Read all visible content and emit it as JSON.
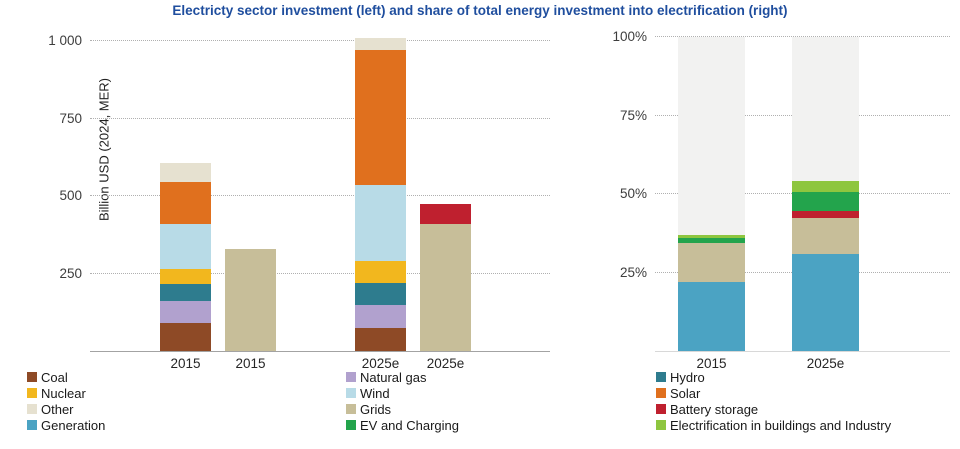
{
  "title": "Electricty sector investment (left) and share of total energy investment into electrification (right)",
  "title_color": "#1f4e9e",
  "chart_data": [
    {
      "type": "bar",
      "stacked": true,
      "panel": "left",
      "title": "Electricity sector investment",
      "ylabel": "Billion USD (2024, MER)",
      "ylim": [
        0,
        1020
      ],
      "grid": "dotted-horizontal",
      "yticks": [
        250,
        500,
        750,
        1000
      ],
      "ytick_labels": [
        "250",
        "500",
        "750",
        "1 000"
      ],
      "categories": [
        "2015",
        "2015",
        "2025e",
        "2025e"
      ],
      "series": [
        {
          "name": "Coal",
          "color": "#8e4a26",
          "values": [
            90,
            0,
            75,
            0
          ]
        },
        {
          "name": "Natural gas",
          "color": "#b1a1ce",
          "values": [
            70,
            0,
            75,
            0
          ]
        },
        {
          "name": "Hydro",
          "color": "#2e7c8e",
          "values": [
            55,
            0,
            70,
            0
          ]
        },
        {
          "name": "Nuclear",
          "color": "#f2b71e",
          "values": [
            50,
            0,
            70,
            0
          ]
        },
        {
          "name": "Wind",
          "color": "#b8dbe7",
          "values": [
            145,
            0,
            245,
            0
          ]
        },
        {
          "name": "Solar",
          "color": "#e0701e",
          "values": [
            135,
            0,
            435,
            0
          ]
        },
        {
          "name": "Other",
          "color": "#e6e1d0",
          "values": [
            60,
            0,
            40,
            0
          ]
        },
        {
          "name": "Grids",
          "color": "#c7be99",
          "values": [
            0,
            330,
            0,
            410
          ]
        },
        {
          "name": "Battery storage",
          "color": "#bf202f",
          "values": [
            0,
            0,
            0,
            65
          ]
        }
      ]
    },
    {
      "type": "bar",
      "stacked": true,
      "panel": "right",
      "title": "Share of total energy investment into electrification",
      "ylabel": "",
      "ylim": [
        0,
        100
      ],
      "grid": "dotted-horizontal",
      "yticks": [
        25,
        50,
        75,
        100
      ],
      "ytick_labels": [
        "25%",
        "50%",
        "75%",
        "100%"
      ],
      "categories": [
        "2015",
        "2025e"
      ],
      "series": [
        {
          "name": "Generation",
          "color": "#4ba3c3",
          "values": [
            22,
            31
          ]
        },
        {
          "name": "Grids",
          "color": "#c7be99",
          "values": [
            12.5,
            11.5
          ]
        },
        {
          "name": "Battery storage",
          "color": "#bf202f",
          "values": [
            0,
            2
          ]
        },
        {
          "name": "EV and Charging",
          "color": "#23a44c",
          "values": [
            1.5,
            6
          ]
        },
        {
          "name": "Electrification in buildings and Industry",
          "color": "#8ec63f",
          "values": [
            1,
            3.5
          ]
        },
        {
          "name": "Remainder",
          "color": "#f2f2f1",
          "values": [
            63,
            46
          ]
        }
      ]
    }
  ],
  "left_chart": {
    "y_axis_title": "Billion USD (2024, MER)"
  },
  "legend": {
    "column1": [
      {
        "label": "Coal",
        "color": "#8e4a26"
      },
      {
        "label": "Nuclear",
        "color": "#f2b71e"
      },
      {
        "label": "Other",
        "color": "#e6e1d0"
      },
      {
        "label": "Generation",
        "color": "#4ba3c3"
      }
    ],
    "column2": [
      {
        "label": "Natural gas",
        "color": "#b1a1ce"
      },
      {
        "label": "Wind",
        "color": "#b8dbe7"
      },
      {
        "label": "Grids",
        "color": "#c7be99"
      },
      {
        "label": "EV and Charging",
        "color": "#23a44c"
      }
    ],
    "column3": [
      {
        "label": "Hydro",
        "color": "#2e7c8e"
      },
      {
        "label": "Solar",
        "color": "#e0701e"
      },
      {
        "label": "Battery storage",
        "color": "#bf202f"
      },
      {
        "label": "Electrification in buildings and Industry",
        "color": "#8ec63f"
      }
    ]
  }
}
